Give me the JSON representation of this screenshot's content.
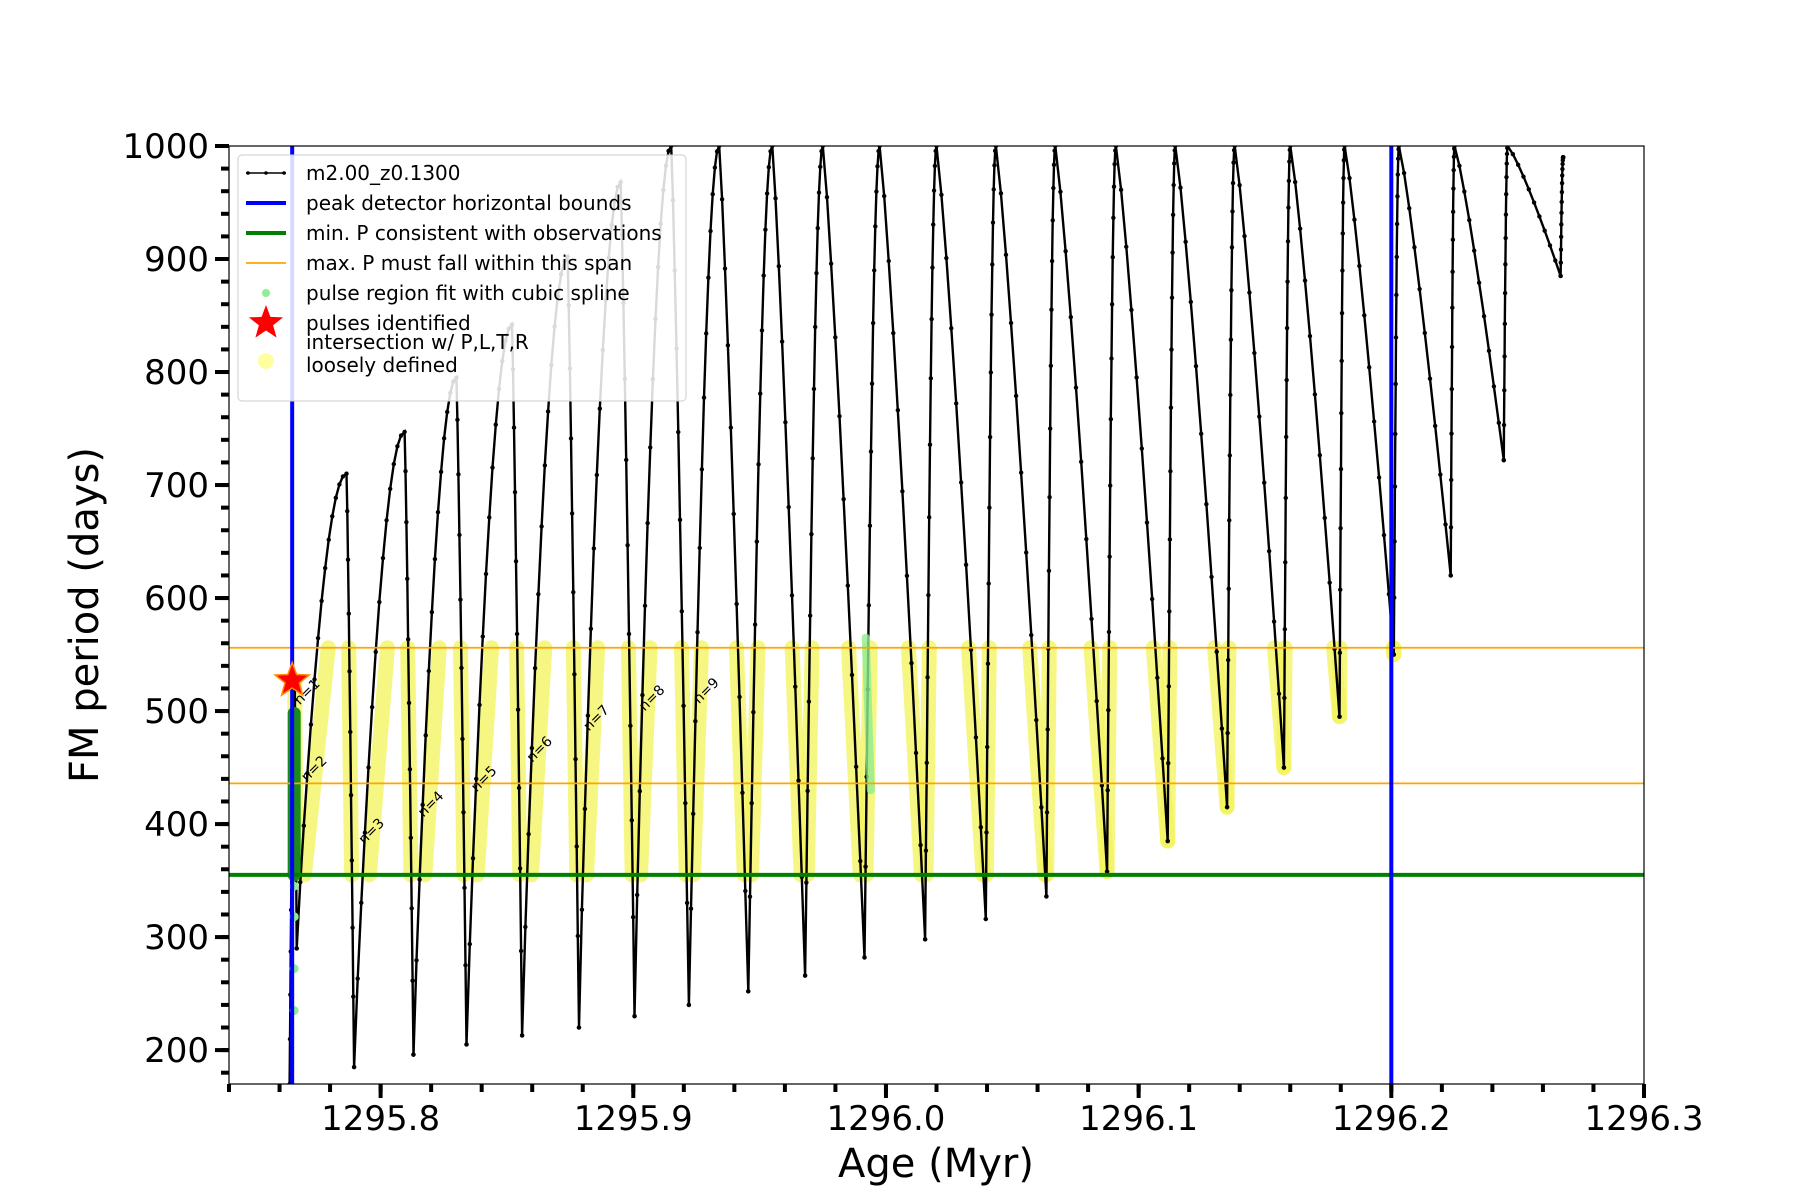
{
  "chart_data": {
    "type": "line",
    "title": "",
    "xlabel": "Age (Myr)",
    "ylabel": "FM period (days)",
    "xlim": [
      1295.74,
      1296.3
    ],
    "ylim": [
      170,
      1000
    ],
    "xticks": [
      1295.8,
      1295.9,
      1296.0,
      1296.1,
      1296.2,
      1296.3
    ],
    "xtick_labels": [
      "1295.8",
      "1295.9",
      "1296.0",
      "1296.1",
      "1296.2",
      "1296.3"
    ],
    "yticks": [
      200,
      300,
      400,
      500,
      600,
      700,
      800,
      900,
      1000
    ],
    "ytick_labels": [
      "200",
      "300",
      "400",
      "500",
      "600",
      "700",
      "800",
      "900",
      "1000"
    ],
    "x_minor_step": 0.02,
    "y_minor_step": 20,
    "grid": false,
    "legend_position": "top-left",
    "legend": [
      {
        "label": "m2.00_z0.1300",
        "marker": "line-dot",
        "color": "#000000"
      },
      {
        "label": "peak detector horizontal bounds",
        "marker": "line",
        "color": "#0000ff"
      },
      {
        "label": "min. P consistent with observations",
        "marker": "line",
        "color": "#008000"
      },
      {
        "label": "max. P must fall within this span",
        "marker": "thin-line",
        "color": "#ffa500"
      },
      {
        "label": "pulse region fit with cubic spline",
        "marker": "dot",
        "color": "#90ee90"
      },
      {
        "label": "pulses identified",
        "marker": "star",
        "color": "#ff0000"
      },
      {
        "label": "intersection w/ P,L,T,R\nloosely defined",
        "marker": "circle",
        "color": "#ffffa0"
      }
    ],
    "vertical_bounds": {
      "label": "peak detector horizontal bounds",
      "color": "#0000ff",
      "x": [
        1295.765,
        1296.2
      ]
    },
    "min_period_line": {
      "label": "min. P consistent with observations",
      "color": "#008000",
      "y": 355
    },
    "max_period_span": {
      "label": "max. P must fall within this span",
      "color": "#ffa500",
      "y": [
        436,
        556
      ]
    },
    "pulses_identified": [
      {
        "x": 1295.765,
        "y": 527
      }
    ],
    "series": [
      {
        "name": "m2.00_z0.1300",
        "color": "#000000",
        "pulses": [
          {
            "n": "n=1",
            "x_start": 1295.764,
            "x_peak": 1295.766,
            "x_end": 1295.7668,
            "p_start": 170,
            "p_peak": 525,
            "p_min": 290
          },
          {
            "n": "n=2",
            "x_start": 1295.7668,
            "x_peak": 1295.7865,
            "x_end": 1295.7895,
            "p_start": 290,
            "p_peak": 710,
            "p_min": 185
          },
          {
            "n": "n=3",
            "x_start": 1295.7895,
            "x_peak": 1295.8095,
            "x_end": 1295.813,
            "p_start": 185,
            "p_peak": 747,
            "p_min": 196
          },
          {
            "n": "n=4",
            "x_start": 1295.813,
            "x_peak": 1295.83,
            "x_end": 1295.834,
            "p_start": 196,
            "p_peak": 795,
            "p_min": 205
          },
          {
            "n": "n=5",
            "x_start": 1295.834,
            "x_peak": 1295.852,
            "x_end": 1295.856,
            "p_start": 205,
            "p_peak": 842,
            "p_min": 213
          },
          {
            "n": "n=6",
            "x_start": 1295.856,
            "x_peak": 1295.874,
            "x_end": 1295.8785,
            "p_start": 213,
            "p_peak": 902,
            "p_min": 220
          },
          {
            "n": "n=7",
            "x_start": 1295.8785,
            "x_peak": 1295.895,
            "x_end": 1295.9005,
            "p_start": 220,
            "p_peak": 968,
            "p_min": 230
          },
          {
            "n": "n=8",
            "x_start": 1295.9005,
            "x_peak": 1295.915,
            "x_end": 1295.922,
            "p_start": 230,
            "p_peak": 1000,
            "p_min": 240
          },
          {
            "n": "n=9",
            "x_start": 1295.922,
            "x_peak": 1295.934,
            "x_end": 1295.9455,
            "p_start": 240,
            "p_peak": 1000,
            "p_min": 252
          },
          {
            "n": "",
            "x_start": 1295.9455,
            "x_peak": 1295.955,
            "x_end": 1295.968,
            "p_start": 252,
            "p_peak": 1000,
            "p_min": 266
          },
          {
            "n": "",
            "x_start": 1295.968,
            "x_peak": 1295.975,
            "x_end": 1295.9915,
            "p_start": 266,
            "p_peak": 1000,
            "p_min": 282
          },
          {
            "n": "",
            "x_start": 1295.9915,
            "x_peak": 1295.9975,
            "x_end": 1296.0155,
            "p_start": 282,
            "p_peak": 1000,
            "p_min": 298
          },
          {
            "n": "",
            "x_start": 1296.0155,
            "x_peak": 1296.02,
            "x_end": 1296.0395,
            "p_start": 298,
            "p_peak": 1000,
            "p_min": 316
          },
          {
            "n": "",
            "x_start": 1296.0395,
            "x_peak": 1296.0435,
            "x_end": 1296.0635,
            "p_start": 316,
            "p_peak": 1000,
            "p_min": 336
          },
          {
            "n": "",
            "x_start": 1296.0635,
            "x_peak": 1296.067,
            "x_end": 1296.0875,
            "p_start": 336,
            "p_peak": 1000,
            "p_min": 358
          },
          {
            "n": "",
            "x_start": 1296.0875,
            "x_peak": 1296.091,
            "x_end": 1296.1115,
            "p_start": 358,
            "p_peak": 1000,
            "p_min": 385
          },
          {
            "n": "",
            "x_start": 1296.1115,
            "x_peak": 1296.1145,
            "x_end": 1296.135,
            "p_start": 385,
            "p_peak": 1000,
            "p_min": 415
          },
          {
            "n": "",
            "x_start": 1296.135,
            "x_peak": 1296.138,
            "x_end": 1296.1575,
            "p_start": 415,
            "p_peak": 1000,
            "p_min": 450
          },
          {
            "n": "",
            "x_start": 1296.1575,
            "x_peak": 1296.16,
            "x_end": 1296.1795,
            "p_start": 450,
            "p_peak": 1000,
            "p_min": 495
          },
          {
            "n": "",
            "x_start": 1296.1795,
            "x_peak": 1296.1815,
            "x_end": 1296.201,
            "p_start": 495,
            "p_peak": 1000,
            "p_min": 550
          },
          {
            "n": "",
            "x_start": 1296.201,
            "x_peak": 1296.203,
            "x_end": 1296.2235,
            "p_start": 550,
            "p_peak": 1000,
            "p_min": 620
          },
          {
            "n": "",
            "x_start": 1296.2235,
            "x_peak": 1296.225,
            "x_end": 1296.2445,
            "p_start": 620,
            "p_peak": 1000,
            "p_min": 722
          },
          {
            "n": "",
            "x_start": 1296.2445,
            "x_peak": 1296.246,
            "x_end": 1296.267,
            "p_start": 722,
            "p_peak": 1000,
            "p_min": 885
          },
          {
            "n": "",
            "x_start": 1296.267,
            "x_peak": 1296.268,
            "x_end": 1296.268,
            "p_start": 885,
            "p_peak": 990,
            "p_min": 990
          }
        ]
      }
    ]
  }
}
